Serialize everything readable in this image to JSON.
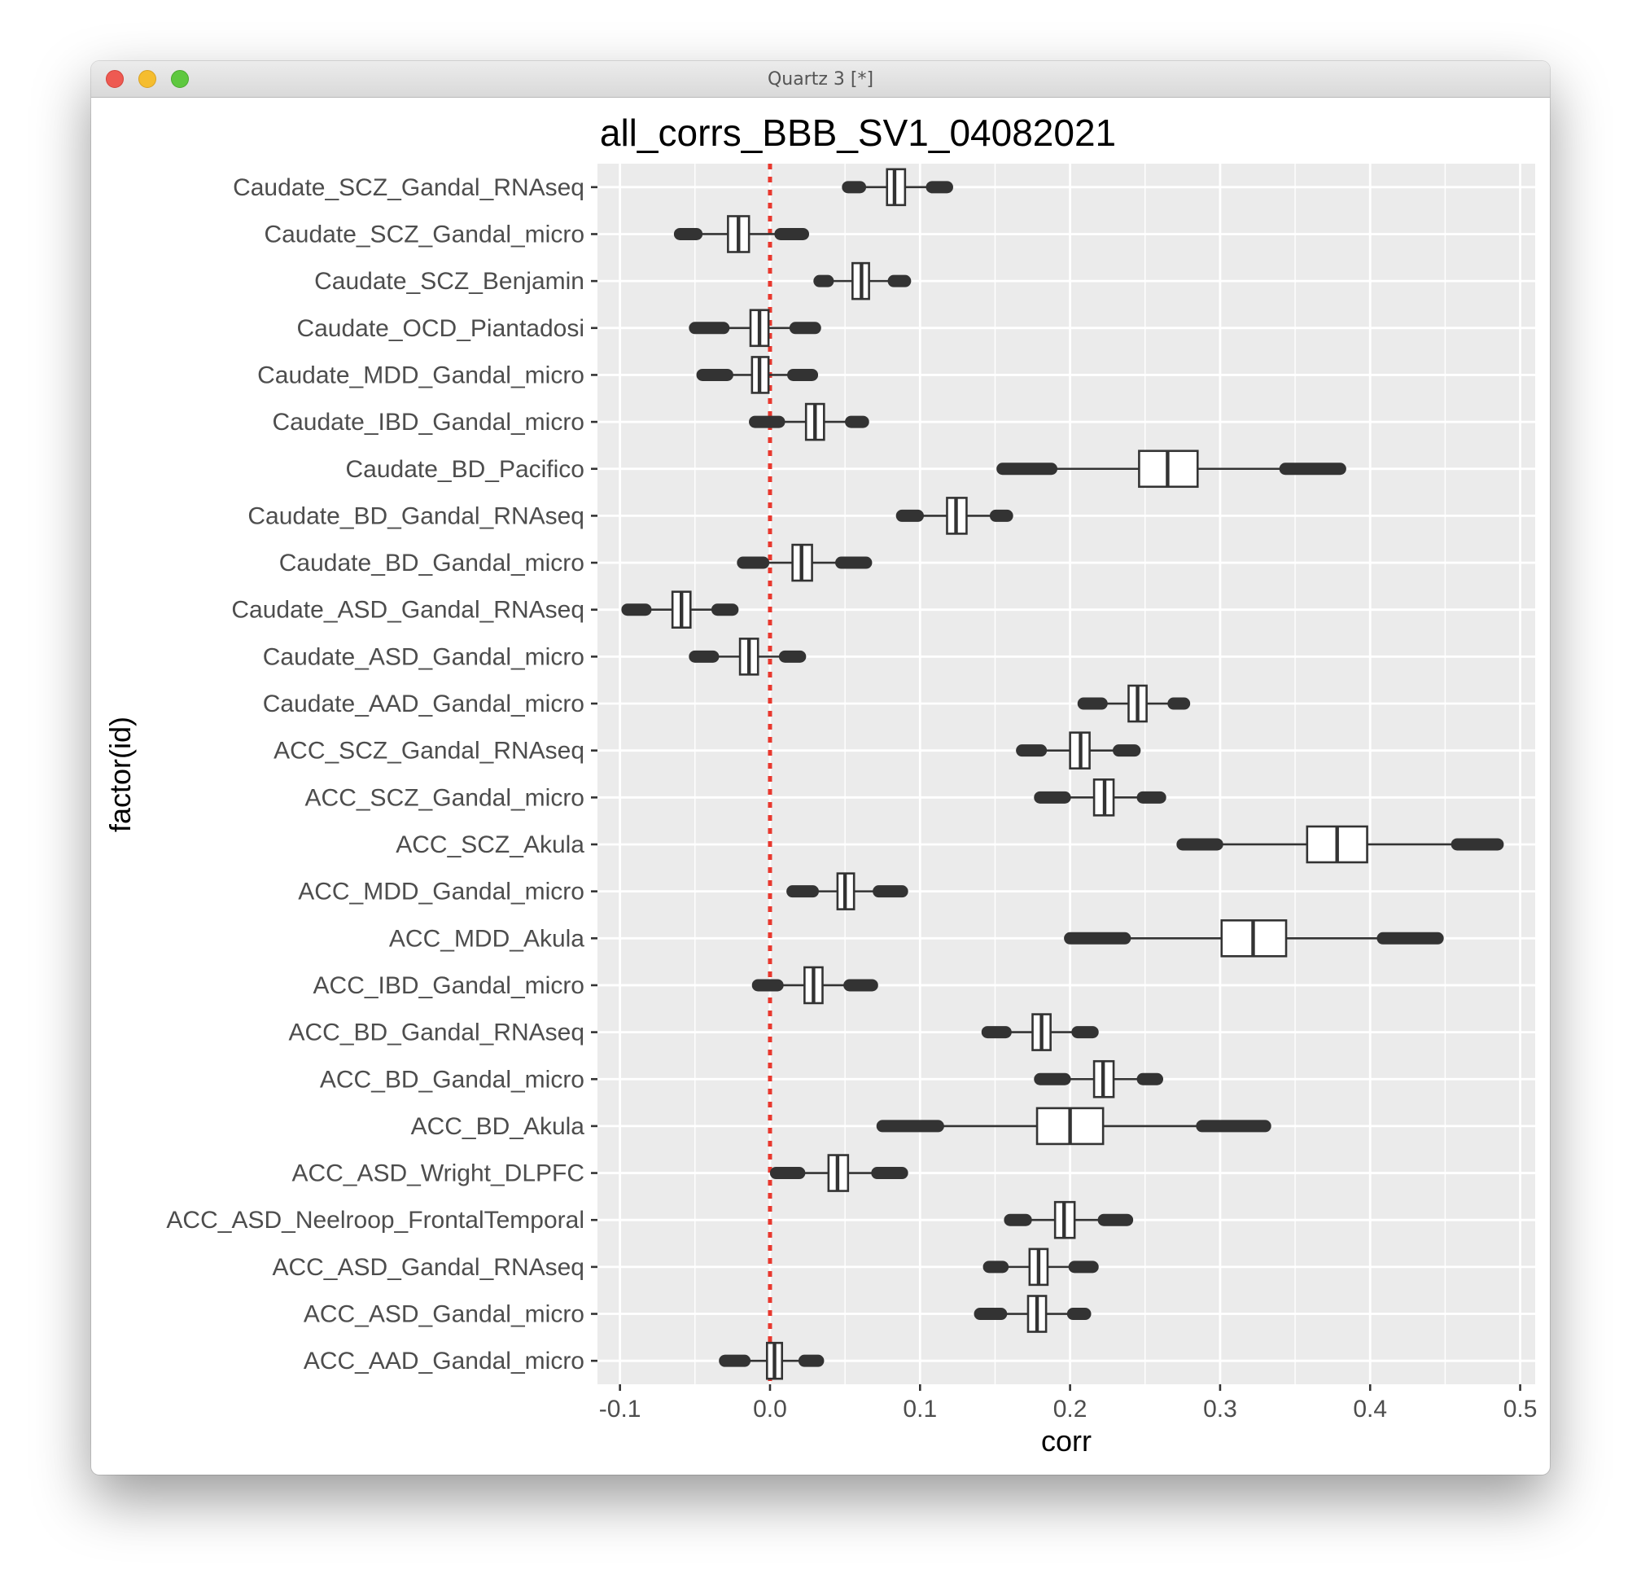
{
  "window": {
    "title": "Quartz 3 [*]"
  },
  "colors": {
    "panel": "#ebebeb",
    "grid_major": "#ffffff",
    "reference_line": "#e8382e",
    "box_stroke": "#333333",
    "outlier": "#333333"
  },
  "chart_data": {
    "type": "boxplot",
    "orientation": "horizontal",
    "title": "all_corrs_BBB_SV1_04082021",
    "xlabel": "corr",
    "ylabel": "factor(id)",
    "xlim": [
      -0.115,
      0.51
    ],
    "xticks": [
      -0.1,
      0.0,
      0.1,
      0.2,
      0.3,
      0.4,
      0.5
    ],
    "xtick_labels": [
      "-0.1",
      "0.0",
      "0.1",
      "0.2",
      "0.3",
      "0.4",
      "0.5"
    ],
    "reference_line": {
      "x": 0.0,
      "style": "dotted"
    },
    "grid": true,
    "categories": [
      {
        "id": "Caudate_SCZ_Gandal_RNAseq",
        "min": 0.052,
        "q1": 0.078,
        "median": 0.083,
        "q3": 0.09,
        "max": 0.118
      },
      {
        "id": "Caudate_SCZ_Gandal_micro",
        "min": -0.06,
        "q1": -0.028,
        "median": -0.021,
        "q3": -0.014,
        "max": 0.022
      },
      {
        "id": "Caudate_SCZ_Benjamin",
        "min": 0.033,
        "q1": 0.055,
        "median": 0.061,
        "q3": 0.066,
        "max": 0.09
      },
      {
        "id": "Caudate_OCD_Piantadosi",
        "min": -0.05,
        "q1": -0.013,
        "median": -0.007,
        "q3": -0.001,
        "max": 0.03
      },
      {
        "id": "Caudate_MDD_Gandal_micro",
        "min": -0.045,
        "q1": -0.012,
        "median": -0.007,
        "q3": -0.001,
        "max": 0.028
      },
      {
        "id": "Caudate_IBD_Gandal_micro",
        "min": -0.01,
        "q1": 0.024,
        "median": 0.03,
        "q3": 0.036,
        "max": 0.062
      },
      {
        "id": "Caudate_BD_Pacifico",
        "min": 0.155,
        "q1": 0.246,
        "median": 0.265,
        "q3": 0.285,
        "max": 0.38
      },
      {
        "id": "Caudate_BD_Gandal_RNAseq",
        "min": 0.088,
        "q1": 0.118,
        "median": 0.124,
        "q3": 0.131,
        "max": 0.158
      },
      {
        "id": "Caudate_BD_Gandal_micro",
        "min": -0.018,
        "q1": 0.015,
        "median": 0.021,
        "q3": 0.028,
        "max": 0.064
      },
      {
        "id": "Caudate_ASD_Gandal_RNAseq",
        "min": -0.095,
        "q1": -0.065,
        "median": -0.059,
        "q3": -0.053,
        "max": -0.025
      },
      {
        "id": "Caudate_ASD_Gandal_micro",
        "min": -0.05,
        "q1": -0.02,
        "median": -0.014,
        "q3": -0.008,
        "max": 0.02
      },
      {
        "id": "Caudate_AAD_Gandal_micro",
        "min": 0.209,
        "q1": 0.239,
        "median": 0.245,
        "q3": 0.251,
        "max": 0.276
      },
      {
        "id": "ACC_SCZ_Gandal_RNAseq",
        "min": 0.168,
        "q1": 0.2,
        "median": 0.207,
        "q3": 0.213,
        "max": 0.243
      },
      {
        "id": "ACC_SCZ_Gandal_micro",
        "min": 0.18,
        "q1": 0.216,
        "median": 0.223,
        "q3": 0.229,
        "max": 0.26
      },
      {
        "id": "ACC_SCZ_Akula",
        "min": 0.275,
        "q1": 0.358,
        "median": 0.378,
        "q3": 0.398,
        "max": 0.485
      },
      {
        "id": "ACC_MDD_Gandal_micro",
        "min": 0.015,
        "q1": 0.045,
        "median": 0.05,
        "q3": 0.056,
        "max": 0.088
      },
      {
        "id": "ACC_MDD_Akula",
        "min": 0.2,
        "q1": 0.301,
        "median": 0.322,
        "q3": 0.344,
        "max": 0.445
      },
      {
        "id": "ACC_IBD_Gandal_micro",
        "min": -0.008,
        "q1": 0.023,
        "median": 0.029,
        "q3": 0.035,
        "max": 0.068
      },
      {
        "id": "ACC_BD_Gandal_RNAseq",
        "min": 0.145,
        "q1": 0.175,
        "median": 0.181,
        "q3": 0.187,
        "max": 0.215
      },
      {
        "id": "ACC_BD_Gandal_micro",
        "min": 0.18,
        "q1": 0.216,
        "median": 0.222,
        "q3": 0.229,
        "max": 0.258
      },
      {
        "id": "ACC_BD_Akula",
        "min": 0.075,
        "q1": 0.178,
        "median": 0.2,
        "q3": 0.222,
        "max": 0.33
      },
      {
        "id": "ACC_ASD_Wright_DLPFC",
        "min": 0.004,
        "q1": 0.039,
        "median": 0.045,
        "q3": 0.052,
        "max": 0.088
      },
      {
        "id": "ACC_ASD_Neelroop_FrontalTemporal",
        "min": 0.16,
        "q1": 0.19,
        "median": 0.196,
        "q3": 0.203,
        "max": 0.238
      },
      {
        "id": "ACC_ASD_Gandal_RNAseq",
        "min": 0.146,
        "q1": 0.173,
        "median": 0.179,
        "q3": 0.185,
        "max": 0.215
      },
      {
        "id": "ACC_ASD_Gandal_micro",
        "min": 0.14,
        "q1": 0.172,
        "median": 0.178,
        "q3": 0.184,
        "max": 0.21
      },
      {
        "id": "ACC_AAD_Gandal_micro",
        "min": -0.03,
        "q1": -0.002,
        "median": 0.003,
        "q3": 0.008,
        "max": 0.032
      }
    ]
  }
}
